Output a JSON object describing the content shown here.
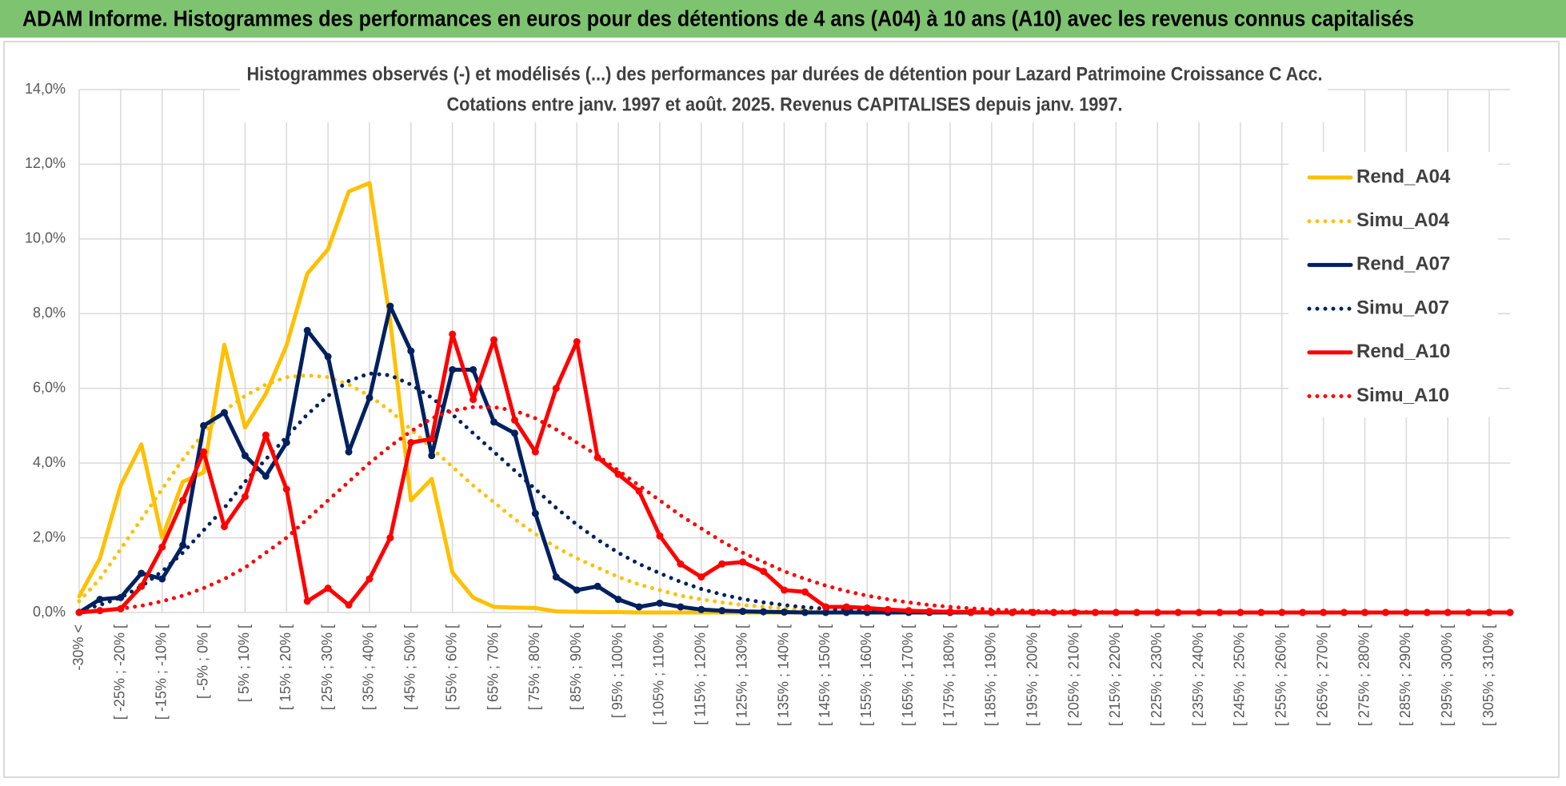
{
  "header": {
    "title": "ADAM Informe. Histogrammes des performances en euros pour des détentions de 4 ans (A04) à 10 ans (A10) avec les revenus connus capitalisés"
  },
  "chart_data": {
    "type": "line",
    "title": "Histogrammes observés (-) et modélisés (...) des performances par durées de détention pour Lazard Patrimoine Croissance C Acc.",
    "subtitle": "Cotations entre janv. 1997 et août. 2025. Revenus CAPITALISES depuis janv. 1997.",
    "categories": [
      "-30% <",
      null,
      "[ -25% ; -20% [",
      null,
      "[ -15% ; -10% [",
      null,
      "[ -5% ; 0% [",
      null,
      "[ 5% ; 10% [",
      null,
      "[ 15% ; 20% [",
      null,
      "[ 25% ; 30% [",
      null,
      "[ 35% ; 40% [",
      null,
      "[ 45% ; 50% [",
      null,
      "[ 55% ; 60% [",
      null,
      "[ 65% ; 70% [",
      null,
      "[ 75% ; 80% [",
      null,
      "[ 85% ; 90% [",
      null,
      "[ 95% ; 100% [",
      null,
      "[ 105% ; 110% [",
      null,
      "[ 115% ; 120% [",
      null,
      "[ 125% ; 130% [",
      null,
      "[ 135% ; 140% [",
      null,
      "[ 145% ; 150% [",
      null,
      "[ 155% ; 160% [",
      null,
      "[ 165% ; 170% [",
      null,
      "[ 175% ; 180% [",
      null,
      "[ 185% ; 190% [",
      null,
      "[ 195% ; 200% [",
      null,
      "[ 205% ; 210% [",
      null,
      "[ 215% ; 220% [",
      null,
      "[ 225% ; 230% [",
      null,
      "[ 235% ; 240% [",
      null,
      "[ 245% ; 250% [",
      null,
      "[ 255% ; 260% [",
      null,
      "[ 265% ; 270% [",
      null,
      "[ 275% ; 280% [",
      null,
      "[ 285% ; 290% [",
      null,
      "[ 295% ; 300% [",
      null,
      "[ 305% ; 310% [",
      null
    ],
    "series": [
      {
        "name": "Rend_A04",
        "color": "#ffc000",
        "dash": false,
        "markers": false,
        "values": [
          0.43,
          1.45,
          3.4,
          4.5,
          2.0,
          3.5,
          3.75,
          7.17,
          4.95,
          5.85,
          7.15,
          9.07,
          9.72,
          11.27,
          11.5,
          7.8,
          3.0,
          3.58,
          1.07,
          0.4,
          0.15,
          0.13,
          0.12,
          0.03,
          0.02,
          0.01,
          0.01,
          0,
          0,
          0,
          0,
          0,
          0,
          0,
          0,
          0,
          0,
          0,
          0,
          0,
          0,
          0,
          0,
          0,
          0,
          0,
          0,
          0,
          0,
          0,
          0,
          0,
          0,
          0,
          0,
          0,
          0,
          0,
          0,
          0,
          0,
          0,
          0,
          0,
          0,
          0,
          0,
          0,
          0,
          0
        ]
      },
      {
        "name": "Simu_A04",
        "color": "#ffc000",
        "dash": true,
        "markers": false,
        "values": [
          0.3,
          0.9,
          1.7,
          2.5,
          3.3,
          4.1,
          4.8,
          5.4,
          5.8,
          6.1,
          6.3,
          6.35,
          6.3,
          6.1,
          5.8,
          5.4,
          4.9,
          4.4,
          3.9,
          3.4,
          2.95,
          2.5,
          2.1,
          1.75,
          1.45,
          1.2,
          0.95,
          0.75,
          0.6,
          0.45,
          0.35,
          0.27,
          0.2,
          0.15,
          0.11,
          0.08,
          0.06,
          0.04,
          0.03,
          0.02,
          0.01,
          0,
          0,
          0,
          0,
          0,
          0,
          0,
          0,
          0,
          0,
          0,
          0,
          0,
          0,
          0,
          0,
          0,
          0,
          0,
          0,
          0,
          0,
          0,
          0,
          0,
          0,
          0,
          0,
          0
        ]
      },
      {
        "name": "Rend_A07",
        "color": "#002060",
        "dash": false,
        "markers": true,
        "values": [
          0,
          0.35,
          0.4,
          1.05,
          0.9,
          1.8,
          5.0,
          5.35,
          4.2,
          3.65,
          4.55,
          7.55,
          6.85,
          4.3,
          5.75,
          8.2,
          7.0,
          4.2,
          6.5,
          6.5,
          5.1,
          4.8,
          2.65,
          0.95,
          0.6,
          0.7,
          0.35,
          0.15,
          0.25,
          0.15,
          0.08,
          0.05,
          0.03,
          0.02,
          0.01,
          0,
          0,
          0,
          0,
          0,
          0,
          0,
          0,
          0,
          0,
          0,
          0,
          0,
          0,
          0,
          0,
          0,
          0,
          0,
          0,
          0,
          0,
          0,
          0,
          0,
          0,
          0,
          0,
          0,
          0,
          0,
          0,
          0,
          0,
          0
        ]
      },
      {
        "name": "Simu_A07",
        "color": "#002060",
        "dash": true,
        "markers": false,
        "values": [
          0.05,
          0.2,
          0.4,
          0.7,
          1.1,
          1.6,
          2.2,
          2.8,
          3.5,
          4.1,
          4.7,
          5.3,
          5.8,
          6.2,
          6.4,
          6.35,
          6.1,
          5.75,
          5.3,
          4.8,
          4.3,
          3.8,
          3.3,
          2.8,
          2.35,
          1.95,
          1.6,
          1.3,
          1.05,
          0.82,
          0.63,
          0.48,
          0.36,
          0.27,
          0.2,
          0.14,
          0.1,
          0.07,
          0.05,
          0.03,
          0.02,
          0.01,
          0,
          0,
          0,
          0,
          0,
          0,
          0,
          0,
          0,
          0,
          0,
          0,
          0,
          0,
          0,
          0,
          0,
          0,
          0,
          0,
          0,
          0,
          0,
          0,
          0,
          0,
          0,
          0
        ]
      },
      {
        "name": "Rend_A10",
        "color": "#ff0000",
        "dash": false,
        "markers": true,
        "values": [
          0,
          0.05,
          0.1,
          0.7,
          1.75,
          3.0,
          4.3,
          2.3,
          3.1,
          4.75,
          3.3,
          0.3,
          0.65,
          0.2,
          0.9,
          2.0,
          4.55,
          4.65,
          7.45,
          5.7,
          7.3,
          5.15,
          4.3,
          6.0,
          7.25,
          4.15,
          3.7,
          3.25,
          2.05,
          1.3,
          0.95,
          1.3,
          1.35,
          1.1,
          0.6,
          0.55,
          0.15,
          0.15,
          0.12,
          0.08,
          0.05,
          0.03,
          0.02,
          0.01,
          0,
          0,
          0,
          0,
          0,
          0,
          0,
          0,
          0,
          0,
          0,
          0,
          0,
          0,
          0,
          0,
          0,
          0,
          0,
          0,
          0,
          0,
          0,
          0,
          0,
          0
        ]
      },
      {
        "name": "Simu_A10",
        "color": "#ff0000",
        "dash": true,
        "markers": false,
        "values": [
          0.02,
          0.05,
          0.1,
          0.18,
          0.3,
          0.45,
          0.65,
          0.9,
          1.2,
          1.6,
          2.0,
          2.5,
          3.0,
          3.5,
          4.0,
          4.45,
          4.85,
          5.2,
          5.4,
          5.5,
          5.5,
          5.4,
          5.2,
          4.9,
          4.55,
          4.2,
          3.8,
          3.4,
          3.0,
          2.6,
          2.25,
          1.9,
          1.6,
          1.35,
          1.1,
          0.9,
          0.72,
          0.57,
          0.45,
          0.35,
          0.27,
          0.2,
          0.15,
          0.11,
          0.08,
          0.06,
          0.04,
          0.03,
          0.02,
          0.01,
          0,
          0,
          0,
          0,
          0,
          0,
          0,
          0,
          0,
          0,
          0,
          0,
          0,
          0,
          0,
          0,
          0,
          0,
          0,
          0
        ]
      }
    ],
    "ylim": [
      0,
      14
    ],
    "yticks": [
      {
        "value": 0,
        "label": "0,0%"
      },
      {
        "value": 2,
        "label": "2,0%"
      },
      {
        "value": 4,
        "label": "4,0%"
      },
      {
        "value": 6,
        "label": "6,0%"
      },
      {
        "value": 8,
        "label": "8,0%"
      },
      {
        "value": 10,
        "label": "10,0%"
      },
      {
        "value": 12,
        "label": "12,0%"
      },
      {
        "value": 14,
        "label": "14,0%"
      }
    ],
    "grid": true,
    "legend": "right"
  }
}
